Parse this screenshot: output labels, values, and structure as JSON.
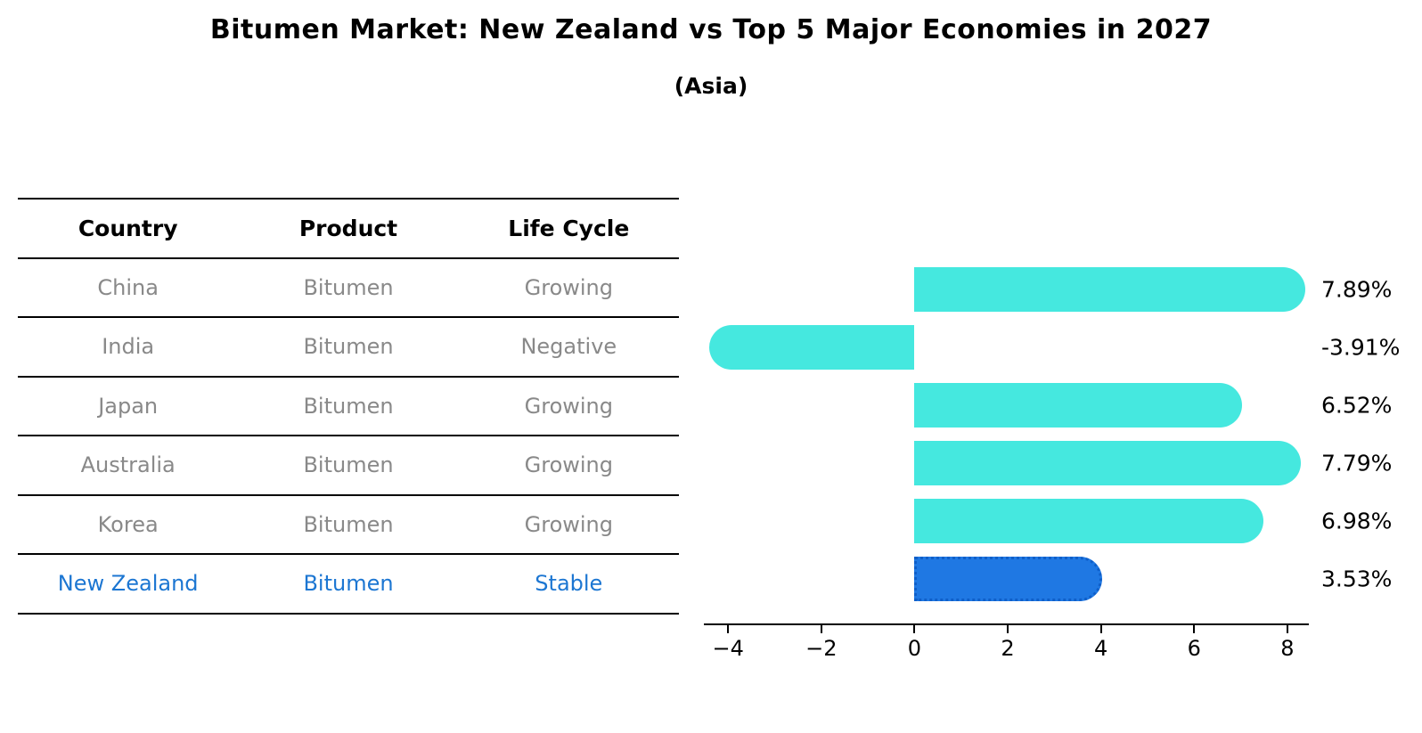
{
  "title": "Bitumen Market: New Zealand vs Top 5 Major Economies in 2027",
  "subtitle": "(Asia)",
  "table": {
    "headers": [
      "Country",
      "Product",
      "Life Cycle"
    ],
    "rows": [
      {
        "country": "China",
        "product": "Bitumen",
        "life_cycle": "Growing",
        "highlighted": false
      },
      {
        "country": "India",
        "product": "Bitumen",
        "life_cycle": "Negative",
        "highlighted": false
      },
      {
        "country": "Japan",
        "product": "Bitumen",
        "life_cycle": "Growing",
        "highlighted": false
      },
      {
        "country": "Australia",
        "product": "Bitumen",
        "life_cycle": "Growing",
        "highlighted": false
      },
      {
        "country": "Korea",
        "product": "Bitumen",
        "life_cycle": "Growing",
        "highlighted": false
      },
      {
        "country": "New Zealand",
        "product": "Bitumen",
        "life_cycle": "Stable",
        "highlighted": true
      }
    ]
  },
  "chart_data": {
    "type": "bar",
    "orientation": "horizontal",
    "categories": [
      "China",
      "India",
      "Japan",
      "Australia",
      "Korea",
      "New Zealand"
    ],
    "values": [
      7.89,
      -3.91,
      6.52,
      7.79,
      6.98,
      3.53
    ],
    "value_labels": [
      "7.89%",
      "-3.91%",
      "6.52%",
      "7.79%",
      "6.98%",
      "3.53%"
    ],
    "highlight_index": 5,
    "xlim": [
      -4.52,
      8.46
    ],
    "xticks": [
      -4,
      -2,
      0,
      2,
      4,
      6,
      8
    ],
    "xtick_labels": [
      "−4",
      "−2",
      "0",
      "2",
      "4",
      "6",
      "8"
    ],
    "grid": false,
    "legend": "none",
    "bar_color": "#45e8df",
    "highlight_color": "#1f78e3",
    "highlight_border_color": "#0f5fc9"
  },
  "colors": {
    "row_text": "#898989",
    "highlight_text": "#1c76d2",
    "header_text": "#000000",
    "axis": "#000000"
  }
}
